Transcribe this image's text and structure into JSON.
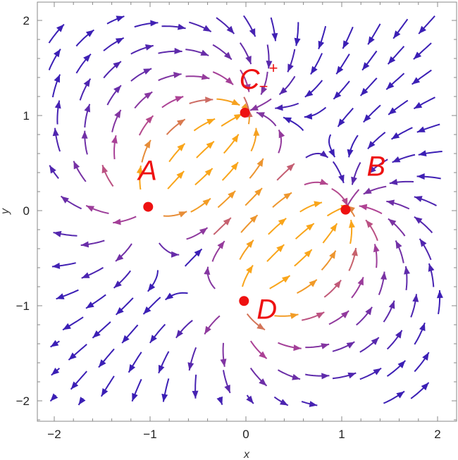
{
  "chart_data": {
    "type": "stream",
    "title": "",
    "xlabel": "x",
    "ylabel": "y",
    "xlim": [
      -2.2,
      2.2
    ],
    "ylim": [
      -2.2,
      2.2
    ],
    "x_ticks": [
      -2,
      -1,
      0,
      1,
      2
    ],
    "y_ticks": [
      -2,
      -1,
      0,
      1,
      2
    ],
    "x_tick_labels": [
      "−2",
      "−1",
      "0",
      "1",
      "2"
    ],
    "y_tick_labels": [
      "−2",
      "−1",
      "0",
      "1",
      "2"
    ],
    "grid": false,
    "vector_field": {
      "u": "y^2 - x^2 + 1",
      "v": "x^2 - y^2 + 1 (approximate)"
    },
    "color_scale": {
      "low": "#3b1fb5",
      "mid": "#b04394",
      "high": "#f9a51a"
    },
    "points": [
      {
        "label": "A",
        "x": -1.02,
        "y": 0.04
      },
      {
        "label": "B",
        "x": 1.04,
        "y": 0.01
      },
      {
        "label": "C",
        "sub": "−",
        "sup": "+",
        "x": -0.01,
        "y": 1.03
      },
      {
        "label": "D",
        "x": -0.02,
        "y": -0.95
      }
    ],
    "point_color": "#ee1111"
  }
}
